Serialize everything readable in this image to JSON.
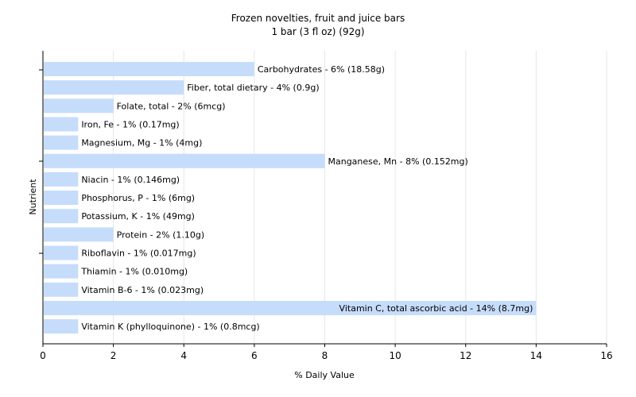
{
  "chart_data": {
    "type": "bar",
    "orientation": "horizontal",
    "title": "Frozen novelties, fruit and juice bars",
    "subtitle": "1 bar (3 fl oz) (92g)",
    "xlabel": "% Daily Value",
    "ylabel": "Nutrient",
    "xlim": [
      0,
      16
    ],
    "xticks": [
      0,
      2,
      4,
      6,
      8,
      10,
      12,
      14,
      16
    ],
    "grid": true,
    "colors": {
      "bar": "#c6dcfb",
      "grid": "#e6e6e6",
      "axis": "#000000"
    },
    "categories": [
      "Carbohydrates",
      "Fiber, total dietary",
      "Folate, total",
      "Iron, Fe",
      "Magnesium, Mg",
      "Manganese, Mn",
      "Niacin",
      "Phosphorus, P",
      "Potassium, K",
      "Protein",
      "Riboflavin",
      "Thiamin",
      "Vitamin B-6",
      "Vitamin C, total ascorbic acid",
      "Vitamin K (phylloquinone)"
    ],
    "values": [
      6,
      4,
      2,
      1,
      1,
      8,
      1,
      1,
      1,
      2,
      1,
      1,
      1,
      14,
      1
    ],
    "labels": [
      "Carbohydrates - 6% (18.58g)",
      "Fiber, total dietary - 4% (0.9g)",
      "Folate, total - 2% (6mcg)",
      "Iron, Fe - 1% (0.17mg)",
      "Magnesium, Mg - 1% (4mg)",
      "Manganese, Mn - 8% (0.152mg)",
      "Niacin - 1% (0.146mg)",
      "Phosphorus, P - 1% (6mg)",
      "Potassium, K - 1% (49mg)",
      "Protein - 2% (1.10g)",
      "Riboflavin - 1% (0.017mg)",
      "Thiamin - 1% (0.010mg)",
      "Vitamin B-6 - 1% (0.023mg)",
      "Vitamin C, total ascorbic acid - 14% (8.7mg)",
      "Vitamin K (phylloquinone) - 1% (0.8mcg)"
    ]
  }
}
